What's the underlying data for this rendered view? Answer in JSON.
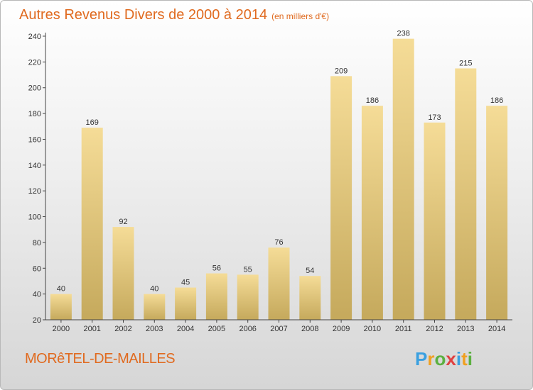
{
  "header": {
    "title": "Autres Revenus Divers de 2000 à 2014",
    "unit": "(en milliers d'€)"
  },
  "footer": {
    "city": "MORêTEL-DE-MAILLES",
    "brand": "Proxiti"
  },
  "colors": {
    "accent": "#e06a1f",
    "bar_top": "#f5dc97",
    "bar_bottom": "#c5a95c"
  },
  "chart_data": {
    "type": "bar",
    "title": "Autres Revenus Divers de 2000 à 2014",
    "subtitle": "(en milliers d'€)",
    "xlabel": "",
    "ylabel": "",
    "categories": [
      "2000",
      "2001",
      "2002",
      "2003",
      "2004",
      "2005",
      "2006",
      "2007",
      "2008",
      "2009",
      "2010",
      "2011",
      "2012",
      "2013",
      "2014"
    ],
    "values": [
      40,
      169,
      92,
      40,
      45,
      56,
      55,
      76,
      54,
      209,
      186,
      238,
      173,
      215,
      186
    ],
    "ylim": [
      20,
      240
    ],
    "yticks": [
      20,
      40,
      60,
      80,
      100,
      120,
      140,
      160,
      180,
      200,
      220,
      240
    ],
    "grid": false,
    "legend": "none"
  }
}
